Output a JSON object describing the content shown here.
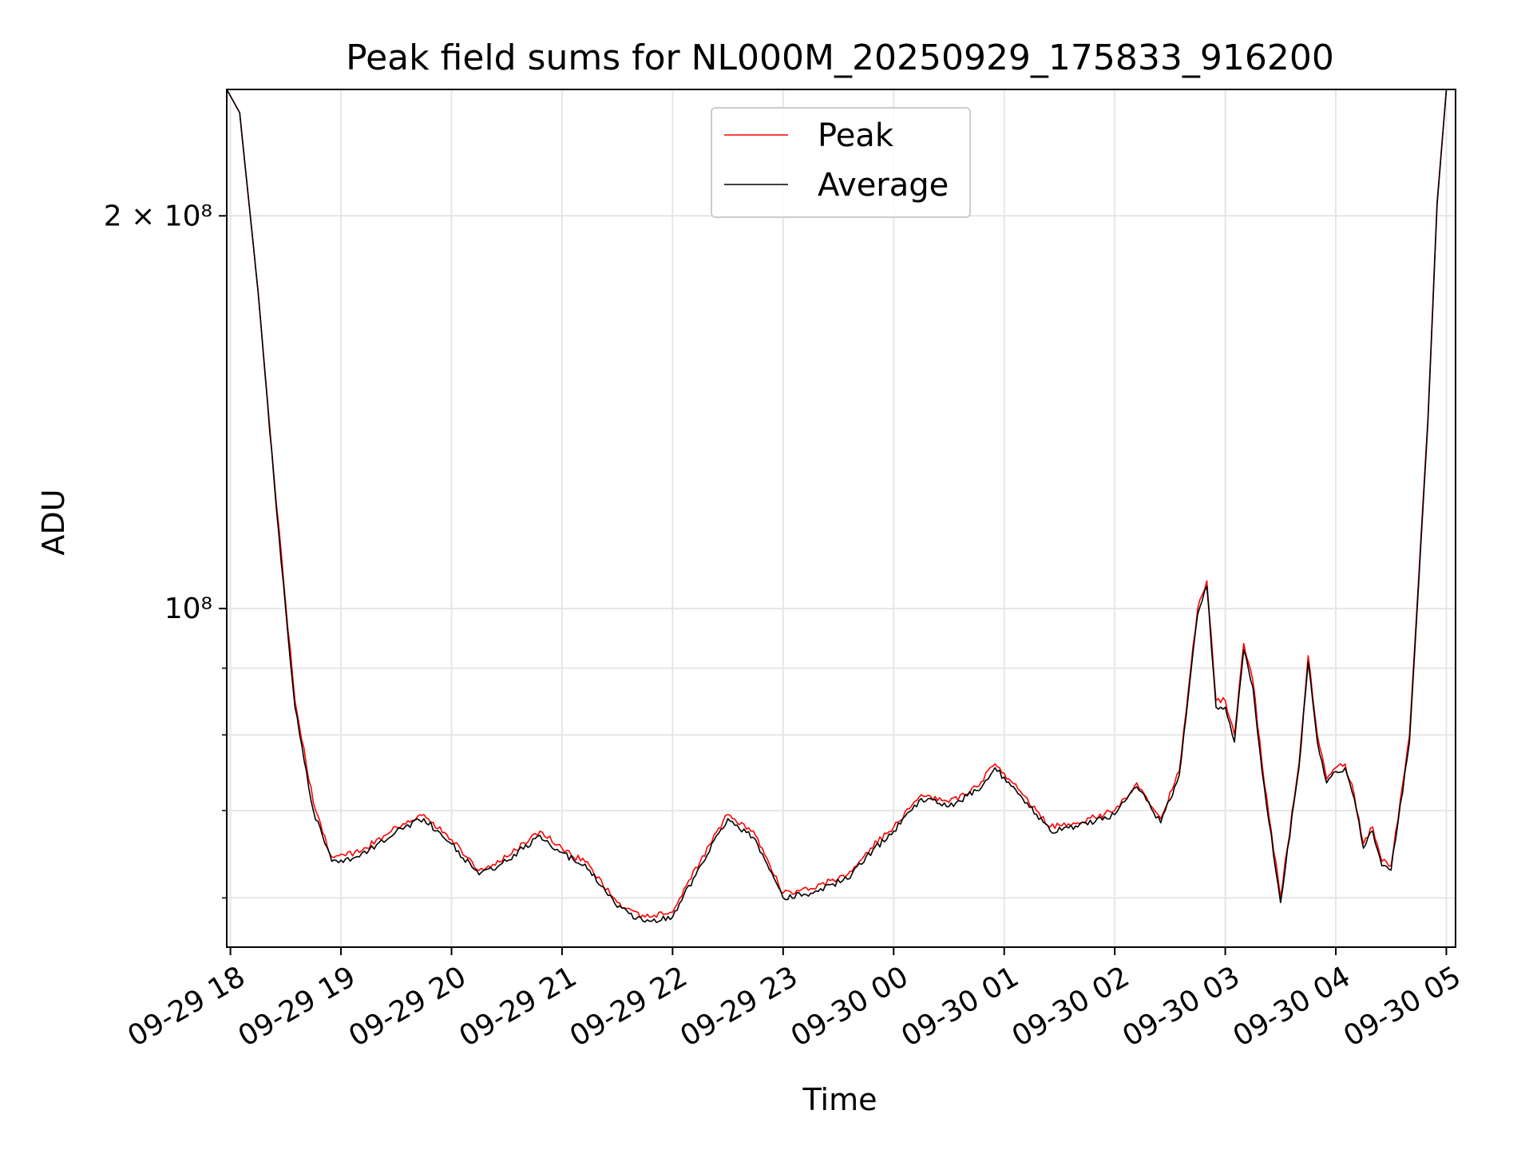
{
  "chart_data": {
    "type": "line",
    "title": "Peak field sums for NL000M_20250929_175833_916200",
    "xlabel": "Time",
    "ylabel": "ADU",
    "y_scale": "log",
    "ylim": [
      55000000,
      250000000
    ],
    "xlim": [
      "2025-09-29 17:58",
      "2025-09-30 05:05"
    ],
    "grid": true,
    "legend_position": "upper center",
    "x_ticks": [
      {
        "label": "09-29 18",
        "x": "2025-09-29 18:00"
      },
      {
        "label": "09-29 19",
        "x": "2025-09-29 19:00"
      },
      {
        "label": "09-29 20",
        "x": "2025-09-29 20:00"
      },
      {
        "label": "09-29 21",
        "x": "2025-09-29 21:00"
      },
      {
        "label": "09-29 22",
        "x": "2025-09-29 22:00"
      },
      {
        "label": "09-29 23",
        "x": "2025-09-29 23:00"
      },
      {
        "label": "09-30 00",
        "x": "2025-09-30 00:00"
      },
      {
        "label": "09-30 01",
        "x": "2025-09-30 01:00"
      },
      {
        "label": "09-30 02",
        "x": "2025-09-30 02:00"
      },
      {
        "label": "09-30 03",
        "x": "2025-09-30 03:00"
      },
      {
        "label": "09-30 04",
        "x": "2025-09-30 04:00"
      },
      {
        "label": "09-30 05",
        "x": "2025-09-30 05:00"
      }
    ],
    "y_ticks": [
      {
        "label": "2 × 10⁸",
        "y": 200000000
      },
      {
        "label": "10⁸",
        "y": 100000000
      }
    ],
    "y_minor_ticks": [
      60000000,
      70000000,
      80000000,
      90000000
    ],
    "series": [
      {
        "name": "Peak",
        "color": "#ff0000",
        "points": [
          [
            "2025-09-29 17:58",
            250000000
          ],
          [
            "2025-09-29 18:05",
            240000000
          ],
          [
            "2025-09-29 18:15",
            175000000
          ],
          [
            "2025-09-29 18:25",
            120000000
          ],
          [
            "2025-09-29 18:35",
            85000000
          ],
          [
            "2025-09-29 18:45",
            71000000
          ],
          [
            "2025-09-29 18:55",
            64500000
          ],
          [
            "2025-09-29 19:10",
            65000000
          ],
          [
            "2025-09-29 19:30",
            68000000
          ],
          [
            "2025-09-29 19:45",
            69500000
          ],
          [
            "2025-09-29 20:00",
            66500000
          ],
          [
            "2025-09-29 20:15",
            63000000
          ],
          [
            "2025-09-29 20:30",
            64500000
          ],
          [
            "2025-09-29 20:48",
            67500000
          ],
          [
            "2025-09-29 21:00",
            65500000
          ],
          [
            "2025-09-29 21:15",
            63500000
          ],
          [
            "2025-09-29 21:30",
            59500000
          ],
          [
            "2025-09-29 21:45",
            58000000
          ],
          [
            "2025-09-29 22:00",
            58500000
          ],
          [
            "2025-09-29 22:15",
            64000000
          ],
          [
            "2025-09-29 22:30",
            69500000
          ],
          [
            "2025-09-29 22:45",
            67000000
          ],
          [
            "2025-09-29 23:00",
            60500000
          ],
          [
            "2025-09-29 23:15",
            61000000
          ],
          [
            "2025-09-29 23:27",
            62000000
          ],
          [
            "2025-09-29 23:35",
            62500000
          ],
          [
            "2025-09-29 23:45",
            65000000
          ],
          [
            "2025-09-30 00:00",
            68000000
          ],
          [
            "2025-09-30 00:15",
            72000000
          ],
          [
            "2025-09-30 00:30",
            71000000
          ],
          [
            "2025-09-30 00:45",
            73000000
          ],
          [
            "2025-09-30 00:55",
            76000000
          ],
          [
            "2025-09-30 01:10",
            72000000
          ],
          [
            "2025-09-30 01:25",
            68000000
          ],
          [
            "2025-09-30 01:40",
            68500000
          ],
          [
            "2025-09-30 02:00",
            70000000
          ],
          [
            "2025-09-30 02:12",
            73500000
          ],
          [
            "2025-09-30 02:25",
            69000000
          ],
          [
            "2025-09-30 02:35",
            75000000
          ],
          [
            "2025-09-30 02:45",
            100000000
          ],
          [
            "2025-09-30 02:50",
            105000000
          ],
          [
            "2025-09-30 02:55",
            85000000
          ],
          [
            "2025-09-30 03:00",
            85000000
          ],
          [
            "2025-09-30 03:05",
            80000000
          ],
          [
            "2025-09-30 03:10",
            94000000
          ],
          [
            "2025-09-30 03:15",
            88000000
          ],
          [
            "2025-09-30 03:20",
            76000000
          ],
          [
            "2025-09-30 03:30",
            60000000
          ],
          [
            "2025-09-30 03:40",
            76000000
          ],
          [
            "2025-09-30 03:45",
            92000000
          ],
          [
            "2025-09-30 03:50",
            80000000
          ],
          [
            "2025-09-30 03:55",
            74000000
          ],
          [
            "2025-09-30 04:00",
            75500000
          ],
          [
            "2025-09-30 04:05",
            76000000
          ],
          [
            "2025-09-30 04:10",
            72000000
          ],
          [
            "2025-09-30 04:15",
            66000000
          ],
          [
            "2025-09-30 04:20",
            68000000
          ],
          [
            "2025-09-30 04:25",
            64000000
          ],
          [
            "2025-09-30 04:30",
            63500000
          ],
          [
            "2025-09-30 04:40",
            80000000
          ],
          [
            "2025-09-30 04:50",
            140000000
          ],
          [
            "2025-09-30 04:55",
            205000000
          ],
          [
            "2025-09-30 05:00",
            250000000
          ]
        ]
      },
      {
        "name": "Average",
        "color": "#000000",
        "points": [
          [
            "2025-09-29 17:58",
            250000000
          ],
          [
            "2025-09-29 18:05",
            240000000
          ],
          [
            "2025-09-29 18:15",
            175000000
          ],
          [
            "2025-09-29 18:25",
            119000000
          ],
          [
            "2025-09-29 18:35",
            84000000
          ],
          [
            "2025-09-29 18:45",
            70000000
          ],
          [
            "2025-09-29 18:55",
            64000000
          ],
          [
            "2025-09-29 19:10",
            64500000
          ],
          [
            "2025-09-29 19:30",
            67500000
          ],
          [
            "2025-09-29 19:45",
            69000000
          ],
          [
            "2025-09-29 20:00",
            66000000
          ],
          [
            "2025-09-29 20:15",
            62500000
          ],
          [
            "2025-09-29 20:30",
            64000000
          ],
          [
            "2025-09-29 20:48",
            67000000
          ],
          [
            "2025-09-29 21:00",
            65000000
          ],
          [
            "2025-09-29 21:15",
            63000000
          ],
          [
            "2025-09-29 21:30",
            59000000
          ],
          [
            "2025-09-29 21:45",
            57500000
          ],
          [
            "2025-09-29 22:00",
            58000000
          ],
          [
            "2025-09-29 22:15",
            63500000
          ],
          [
            "2025-09-29 22:30",
            69000000
          ],
          [
            "2025-09-29 22:45",
            66500000
          ],
          [
            "2025-09-29 23:00",
            60000000
          ],
          [
            "2025-09-29 23:15",
            60500000
          ],
          [
            "2025-09-29 23:27",
            61500000
          ],
          [
            "2025-09-29 23:35",
            62000000
          ],
          [
            "2025-09-29 23:45",
            64500000
          ],
          [
            "2025-09-30 00:00",
            67500000
          ],
          [
            "2025-09-30 00:15",
            71500000
          ],
          [
            "2025-09-30 00:30",
            70500000
          ],
          [
            "2025-09-30 00:45",
            72500000
          ],
          [
            "2025-09-30 00:55",
            75500000
          ],
          [
            "2025-09-30 01:10",
            71500000
          ],
          [
            "2025-09-30 01:25",
            67500000
          ],
          [
            "2025-09-30 01:40",
            68000000
          ],
          [
            "2025-09-30 02:00",
            69500000
          ],
          [
            "2025-09-30 02:12",
            73000000
          ],
          [
            "2025-09-30 02:25",
            68500000
          ],
          [
            "2025-09-30 02:35",
            74500000
          ],
          [
            "2025-09-30 02:45",
            99000000
          ],
          [
            "2025-09-30 02:50",
            104000000
          ],
          [
            "2025-09-30 02:55",
            84000000
          ],
          [
            "2025-09-30 03:00",
            84000000
          ],
          [
            "2025-09-30 03:05",
            79000000
          ],
          [
            "2025-09-30 03:10",
            93000000
          ],
          [
            "2025-09-30 03:15",
            87000000
          ],
          [
            "2025-09-30 03:20",
            75000000
          ],
          [
            "2025-09-30 03:30",
            59500000
          ],
          [
            "2025-09-30 03:40",
            75500000
          ],
          [
            "2025-09-30 03:45",
            91000000
          ],
          [
            "2025-09-30 03:50",
            79000000
          ],
          [
            "2025-09-30 03:55",
            73500000
          ],
          [
            "2025-09-30 04:00",
            75000000
          ],
          [
            "2025-09-30 04:05",
            75500000
          ],
          [
            "2025-09-30 04:10",
            71500000
          ],
          [
            "2025-09-30 04:15",
            65500000
          ],
          [
            "2025-09-30 04:20",
            67500000
          ],
          [
            "2025-09-30 04:25",
            63500000
          ],
          [
            "2025-09-30 04:30",
            63000000
          ],
          [
            "2025-09-30 04:40",
            79000000
          ],
          [
            "2025-09-30 04:50",
            139000000
          ],
          [
            "2025-09-30 04:55",
            204000000
          ],
          [
            "2025-09-30 05:00",
            250000000
          ]
        ]
      }
    ]
  }
}
